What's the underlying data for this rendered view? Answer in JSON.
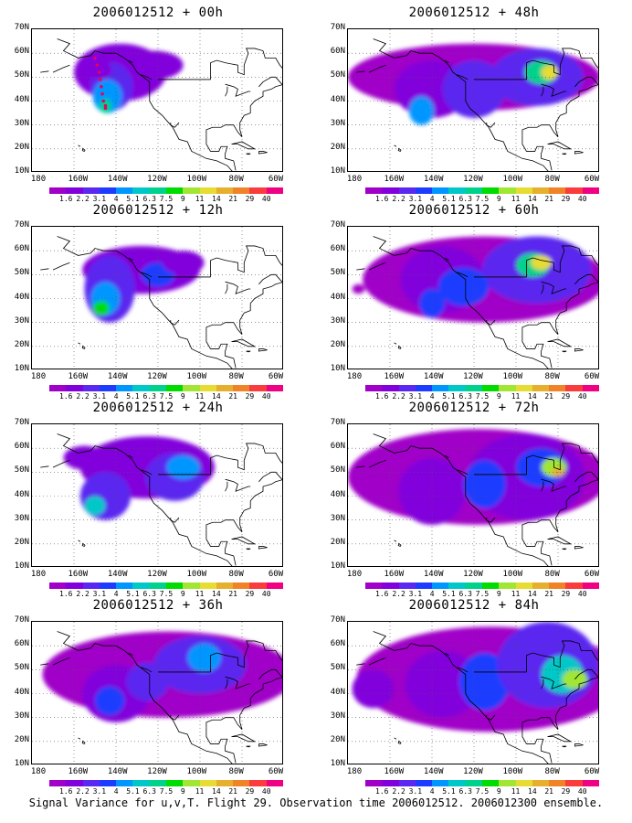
{
  "panels": [
    {
      "title": "2006012512 + 00h"
    },
    {
      "title": "2006012512 + 48h"
    },
    {
      "title": "2006012512 + 12h"
    },
    {
      "title": "2006012512 + 60h"
    },
    {
      "title": "2006012512 + 24h"
    },
    {
      "title": "2006012512 + 72h"
    },
    {
      "title": "2006012512 + 36h"
    },
    {
      "title": "2006012512 + 84h"
    }
  ],
  "lat_labels": [
    "70N",
    "60N",
    "50N",
    "40N",
    "30N",
    "20N",
    "10N"
  ],
  "lon_labels": [
    "180",
    "160W",
    "140W",
    "120W",
    "100W",
    "80W",
    "60W"
  ],
  "colorbar": {
    "levels": [
      "1.6",
      "2.2",
      "3.1",
      "4",
      "5.1",
      "6.3",
      "7.5",
      "9",
      "11",
      "14",
      "21",
      "29",
      "40"
    ],
    "colors": [
      "#a000c8",
      "#8200dc",
      "#5a28f0",
      "#1e3cff",
      "#0096ff",
      "#00c8c8",
      "#00d28c",
      "#00dc00",
      "#a0e632",
      "#e6dc32",
      "#e6af2d",
      "#f08228",
      "#fa3c3c",
      "#f00082"
    ]
  },
  "footer": "Signal Variance for u,v,T. Flight 29. Observation time 2006012512. 2006012300 ensemble."
}
